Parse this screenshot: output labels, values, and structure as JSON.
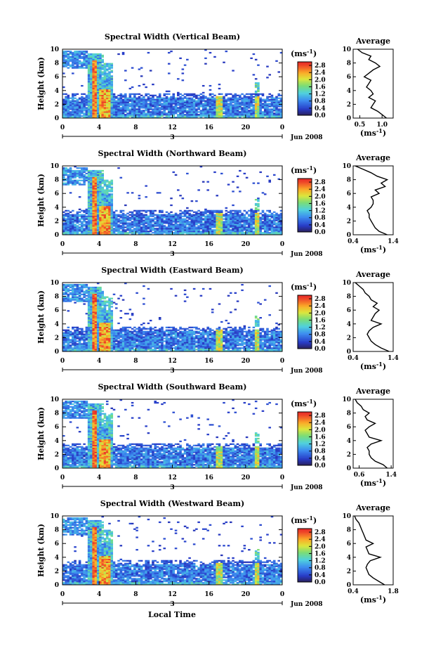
{
  "figure": {
    "time_axis_label": "Local Time",
    "date_label": "Jun 2008",
    "day_label": "3",
    "average_title": "Average",
    "height_axis_label": "Height (km)",
    "unit_label": "(ms",
    "unit_exp": "-1"
  },
  "chart_data": [
    {
      "type": "heatmap",
      "title": "Spectral Width (Vertical Beam)",
      "xlabel": "",
      "ylabel": "Height (km)",
      "x_ticks": [
        "0",
        "4",
        "8",
        "12",
        "16",
        "20",
        "0"
      ],
      "xlim": [
        0,
        24
      ],
      "y_ticks": [
        "0",
        "2",
        "4",
        "6",
        "8",
        "10"
      ],
      "ylim": [
        0,
        10
      ],
      "colorbar": {
        "ticks": [
          "0.0",
          "0.4",
          "0.8",
          "1.2",
          "1.6",
          "2.0",
          "2.4",
          "2.8"
        ],
        "range": [
          0,
          3.0
        ]
      },
      "average_profile": {
        "x_ticks": [
          "0.5",
          "1.0"
        ],
        "xlim": [
          0.35,
          1.25
        ],
        "heights": [
          0,
          0.5,
          1,
          1.5,
          2,
          2.5,
          3,
          3.5,
          4,
          4.5,
          5,
          5.5,
          6,
          6.5,
          7,
          7.5,
          8,
          8.5,
          9,
          9.5,
          10
        ],
        "values": [
          1.1,
          1.0,
          0.9,
          0.75,
          0.8,
          0.85,
          0.7,
          0.8,
          0.75,
          0.65,
          0.7,
          0.75,
          0.6,
          0.7,
          0.8,
          0.95,
          0.85,
          0.7,
          0.75,
          0.55,
          0.45
        ]
      }
    },
    {
      "type": "heatmap",
      "title": "Spectral Width (Northward Beam)",
      "xlabel": "",
      "ylabel": "Height (km)",
      "x_ticks": [
        "0",
        "4",
        "8",
        "12",
        "16",
        "20",
        "0"
      ],
      "xlim": [
        0,
        24
      ],
      "y_ticks": [
        "0",
        "2",
        "4",
        "6",
        "8",
        "10"
      ],
      "ylim": [
        0,
        10
      ],
      "colorbar": {
        "ticks": [
          "0.0",
          "0.4",
          "0.8",
          "1.2",
          "1.6",
          "2.0",
          "2.4",
          "2.8"
        ],
        "range": [
          0,
          3.0
        ]
      },
      "average_profile": {
        "x_ticks": [
          "0.4",
          "1.4"
        ],
        "xlim": [
          0.4,
          1.4
        ],
        "heights": [
          0,
          0.5,
          1,
          1.5,
          2,
          2.5,
          3,
          3.5,
          4,
          4.5,
          5,
          5.5,
          6,
          6.5,
          7,
          7.5,
          8,
          8.5,
          9,
          9.5,
          10
        ],
        "values": [
          1.25,
          1.05,
          0.95,
          0.9,
          0.85,
          0.8,
          0.8,
          0.75,
          0.85,
          0.9,
          0.9,
          0.85,
          1.05,
          0.95,
          1.2,
          1.1,
          1.25,
          1.0,
          0.85,
          0.65,
          0.45
        ]
      }
    },
    {
      "type": "heatmap",
      "title": "Spectral Width (Eastward Beam)",
      "xlabel": "",
      "ylabel": "Height (km)",
      "x_ticks": [
        "0",
        "4",
        "8",
        "12",
        "16",
        "20",
        "0"
      ],
      "xlim": [
        0,
        24
      ],
      "y_ticks": [
        "0",
        "2",
        "4",
        "6",
        "8",
        "10"
      ],
      "ylim": [
        0,
        10
      ],
      "colorbar": {
        "ticks": [
          "0.0",
          "0.4",
          "0.8",
          "1.2",
          "1.6",
          "2.0",
          "2.4",
          "2.8"
        ],
        "range": [
          0,
          3.0
        ]
      },
      "average_profile": {
        "x_ticks": [
          "0.4",
          "1.4"
        ],
        "xlim": [
          0.4,
          1.4
        ],
        "heights": [
          0,
          0.5,
          1,
          1.5,
          2,
          2.5,
          3,
          3.5,
          4,
          4.5,
          5,
          5.5,
          6,
          6.5,
          7,
          7.5,
          8,
          8.5,
          9,
          9.5,
          10
        ],
        "values": [
          1.3,
          1.1,
          0.95,
          0.85,
          0.8,
          0.75,
          0.8,
          0.9,
          1.1,
          0.85,
          0.9,
          0.95,
          1.05,
          0.9,
          1.0,
          0.85,
          0.8,
          0.7,
          0.65,
          0.55,
          0.45
        ]
      }
    },
    {
      "type": "heatmap",
      "title": "Spectral Width (Southward Beam)",
      "xlabel": "",
      "ylabel": "Height (km)",
      "x_ticks": [
        "0",
        "4",
        "8",
        "12",
        "16",
        "20",
        "0"
      ],
      "xlim": [
        0,
        24
      ],
      "y_ticks": [
        "0",
        "2",
        "4",
        "6",
        "8",
        "10"
      ],
      "ylim": [
        0,
        10
      ],
      "colorbar": {
        "ticks": [
          "0.0",
          "0.4",
          "0.8",
          "1.2",
          "1.6",
          "2.0",
          "2.4",
          "2.8"
        ],
        "range": [
          0,
          3.0
        ]
      },
      "average_profile": {
        "x_ticks": [
          "0.6",
          "1.4"
        ],
        "xlim": [
          0.45,
          1.45
        ],
        "heights": [
          0,
          0.5,
          1,
          1.5,
          2,
          2.5,
          3,
          3.5,
          4,
          4.5,
          5,
          5.5,
          6,
          6.5,
          7,
          7.5,
          8,
          8.5,
          9,
          9.5,
          10
        ],
        "values": [
          1.3,
          1.2,
          1.0,
          0.9,
          0.85,
          0.85,
          0.8,
          0.9,
          1.15,
          0.85,
          0.8,
          0.75,
          0.85,
          1.0,
          0.8,
          0.75,
          0.85,
          0.7,
          0.65,
          0.55,
          0.5
        ]
      }
    },
    {
      "type": "heatmap",
      "title": "Spectral Width (Westward Beam)",
      "xlabel": "Local Time",
      "ylabel": "Height (km)",
      "x_ticks": [
        "0",
        "4",
        "8",
        "12",
        "16",
        "20",
        "0"
      ],
      "xlim": [
        0,
        24
      ],
      "y_ticks": [
        "0",
        "2",
        "4",
        "6",
        "8",
        "10"
      ],
      "ylim": [
        0,
        10
      ],
      "colorbar": {
        "ticks": [
          "0.0",
          "0.4",
          "0.8",
          "1.2",
          "1.6",
          "2.0",
          "2.4",
          "2.8"
        ],
        "range": [
          0,
          3.0
        ]
      },
      "average_profile": {
        "x_ticks": [
          "0.4",
          "1.8"
        ],
        "xlim": [
          0.4,
          1.8
        ],
        "heights": [
          0,
          0.5,
          1,
          1.5,
          2,
          2.5,
          3,
          3.5,
          4,
          4.5,
          5,
          5.5,
          6,
          6.5,
          7,
          7.5,
          8,
          8.5,
          9,
          9.5,
          10
        ],
        "values": [
          1.5,
          1.3,
          1.1,
          0.95,
          0.9,
          0.85,
          0.9,
          1.0,
          1.35,
          0.95,
          0.9,
          0.85,
          1.1,
          0.85,
          0.8,
          0.75,
          0.7,
          0.65,
          0.6,
          0.5,
          0.45
        ]
      }
    }
  ]
}
